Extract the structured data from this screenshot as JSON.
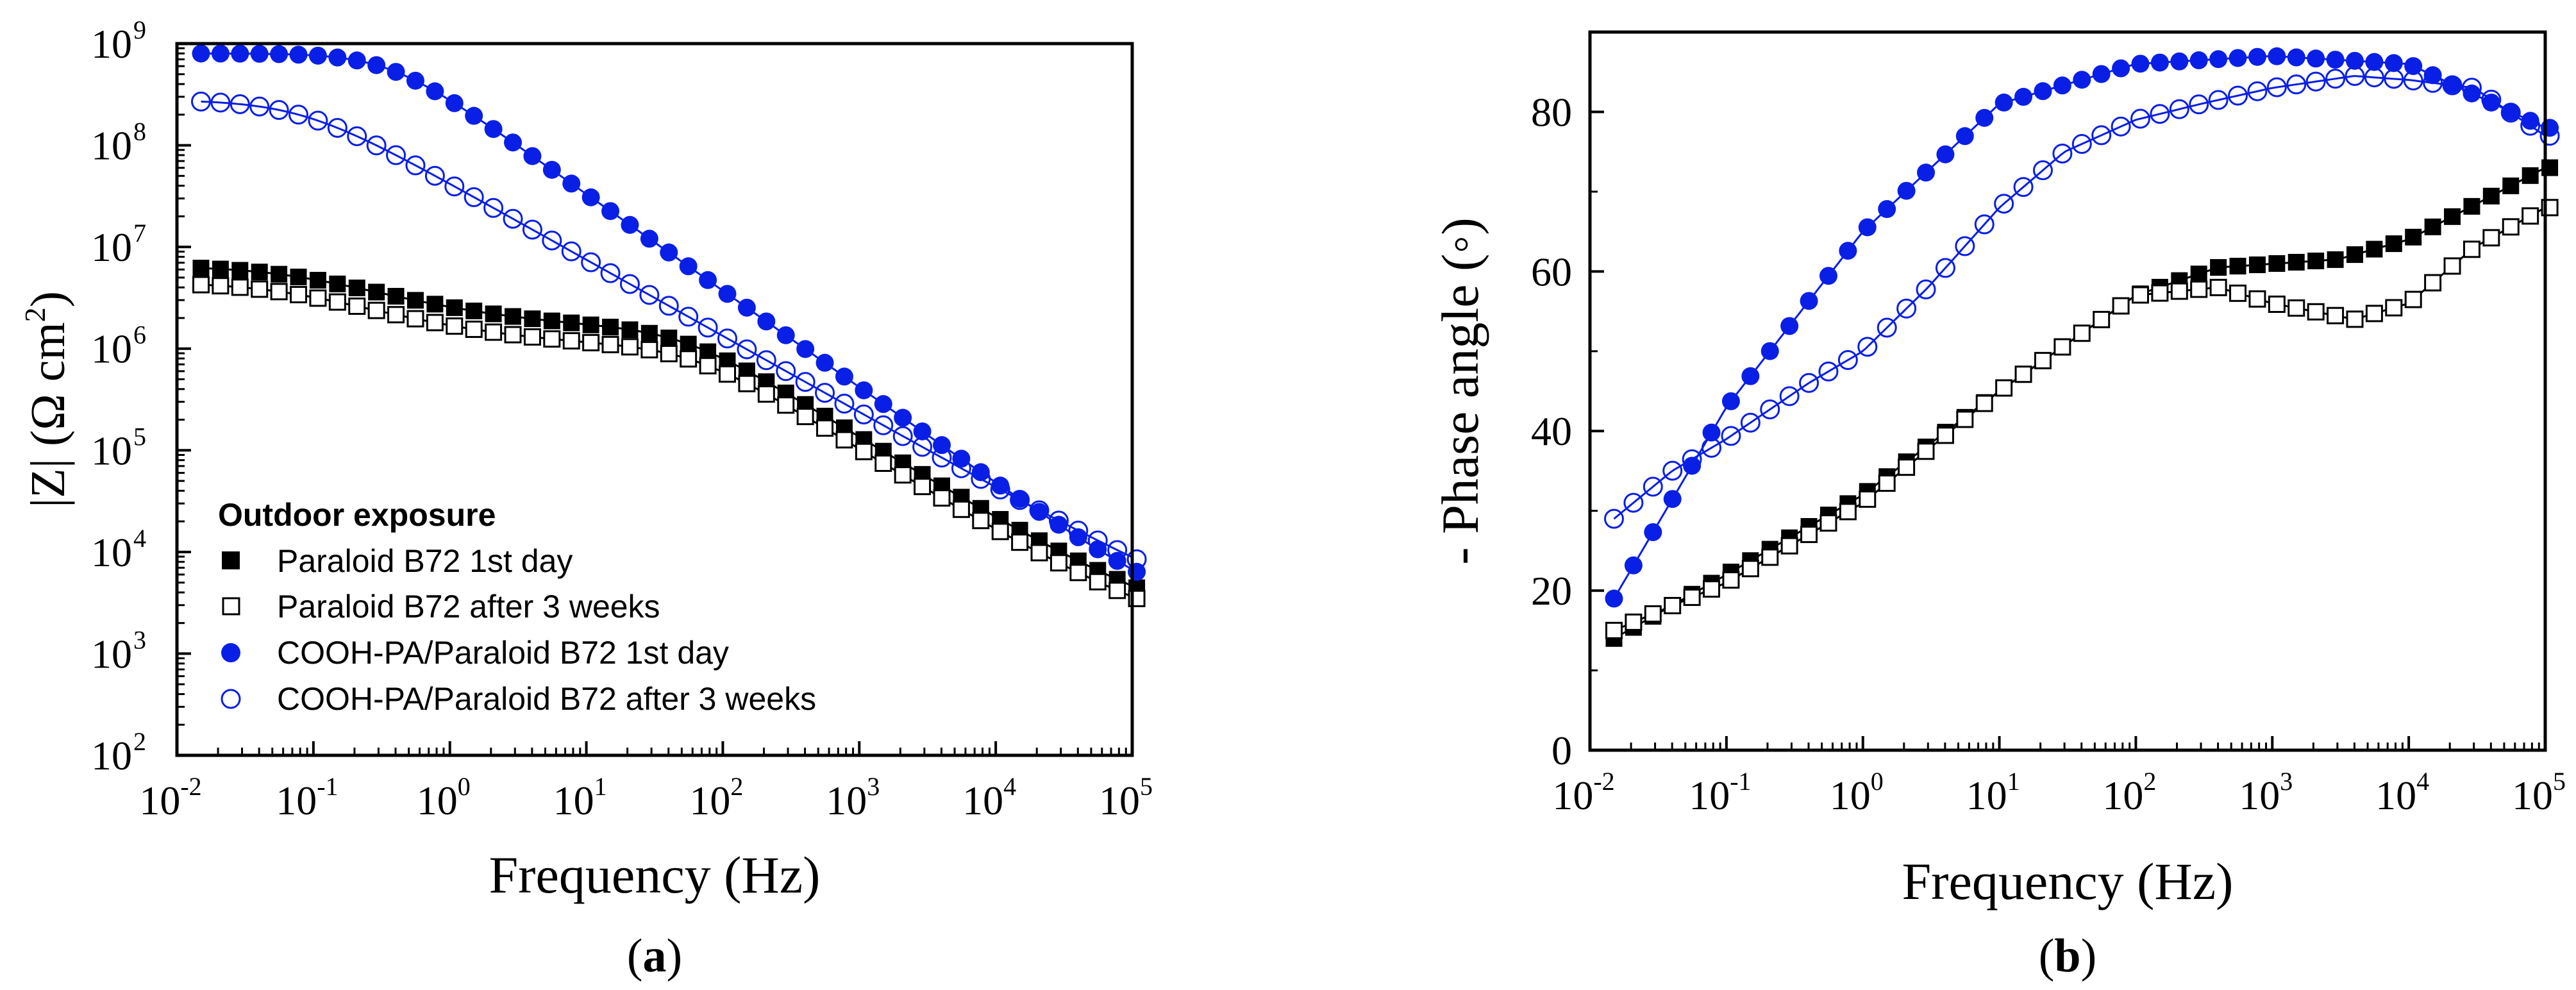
{
  "chart_data": [
    {
      "type": "scatter",
      "panel": "a",
      "panel_label": "a",
      "ylabel": "|Z| (Ω cm²)",
      "ylabel_main": "|Z| (Ω cm",
      "ylabel_sup": "2",
      "ylabel_close": ")",
      "xlabel": "Frequency (Hz)",
      "xscale": "log",
      "yscale": "log",
      "xlim": [
        0.01,
        100000
      ],
      "ylim": [
        100,
        1000000000
      ],
      "x_tick_labels": [
        {
          "base": "10",
          "exp": "-2"
        },
        {
          "base": "10",
          "exp": "-1"
        },
        {
          "base": "10",
          "exp": "0"
        },
        {
          "base": "10",
          "exp": "1"
        },
        {
          "base": "10",
          "exp": "2"
        },
        {
          "base": "10",
          "exp": "3"
        },
        {
          "base": "10",
          "exp": "4"
        },
        {
          "base": "10",
          "exp": "5"
        }
      ],
      "y_tick_labels": [
        {
          "base": "10",
          "exp": "2"
        },
        {
          "base": "10",
          "exp": "3"
        },
        {
          "base": "10",
          "exp": "4"
        },
        {
          "base": "10",
          "exp": "5"
        },
        {
          "base": "10",
          "exp": "6"
        },
        {
          "base": "10",
          "exp": "7"
        },
        {
          "base": "10",
          "exp": "8"
        },
        {
          "base": "10",
          "exp": "9"
        }
      ],
      "legend_title": "Outdoor exposure",
      "legend_position": "bottom-left",
      "series": [
        {
          "name": "Paraloid B72 1st day",
          "marker": "square-filled",
          "color": "#000000",
          "model": "z",
          "params": {
            "Rs": 1200,
            "R1": 5000000,
            "f1": 0.08,
            "n1": 0.6,
            "R2": 1500000,
            "f2": 50,
            "n2": 0.85
          }
        },
        {
          "name": "Paraloid B72 after 3 weeks",
          "marker": "square-open",
          "color": "#000000",
          "model": "z",
          "params": {
            "Rs": 1100,
            "R1": 3500000,
            "f1": 0.07,
            "n1": 0.6,
            "R2": 1000000,
            "f2": 60,
            "n2": 0.85
          }
        },
        {
          "name": "COOH-PA/Paraloid B72 1st day",
          "marker": "circle-filled",
          "color": "#0a1fe6",
          "model": "z",
          "params": {
            "Rs": 1500,
            "R1": 800000000,
            "f1": 0.35,
            "n1": 0.95
          }
        },
        {
          "name": "COOH-PA/Paraloid B72 after 3 weeks",
          "marker": "circle-open",
          "color": "#0a1fe6",
          "model": "z",
          "params": {
            "Rs": 1400,
            "R1": 280000000,
            "f1": 0.08,
            "n1": 0.75
          }
        }
      ]
    },
    {
      "type": "scatter",
      "panel": "b",
      "panel_label": "b",
      "ylabel": "- Phase angle (◦)",
      "xlabel": "Frequency (Hz)",
      "xscale": "log",
      "yscale": "linear",
      "xlim": [
        0.01,
        100000
      ],
      "ylim": [
        0,
        90
      ],
      "x_tick_labels": [
        {
          "base": "10",
          "exp": "-2"
        },
        {
          "base": "10",
          "exp": "-1"
        },
        {
          "base": "10",
          "exp": "0"
        },
        {
          "base": "10",
          "exp": "1"
        },
        {
          "base": "10",
          "exp": "2"
        },
        {
          "base": "10",
          "exp": "3"
        },
        {
          "base": "10",
          "exp": "4"
        },
        {
          "base": "10",
          "exp": "5"
        }
      ],
      "y_ticks": [
        0,
        20,
        40,
        60,
        80
      ],
      "y_tick_labels": [
        "0",
        "20",
        "40",
        "60",
        "80"
      ],
      "series": [
        {
          "name": "Paraloid B72 1st day",
          "marker": "square-filled",
          "color": "#000000",
          "model": "phase",
          "points": [
            [
              0.015,
              14
            ],
            [
              0.1,
              22
            ],
            [
              1,
              32
            ],
            [
              10,
              45
            ],
            [
              100,
              57
            ],
            [
              400,
              60.5
            ],
            [
              3000,
              61.5
            ],
            [
              10000,
              64
            ],
            [
              100000,
              73
            ]
          ]
        },
        {
          "name": "Paraloid B72 after 3 weeks",
          "marker": "square-open",
          "color": "#000000",
          "model": "phase",
          "points": [
            [
              0.015,
              15
            ],
            [
              0.1,
              21
            ],
            [
              1,
              31
            ],
            [
              10,
              45
            ],
            [
              100,
              57
            ],
            [
              400,
              58
            ],
            [
              1000,
              56
            ],
            [
              4000,
              54
            ],
            [
              10000,
              56
            ],
            [
              30000,
              63
            ],
            [
              100000,
              68
            ]
          ]
        },
        {
          "name": "COOH-PA/Paraloid B72 1st day",
          "marker": "circle-filled",
          "color": "#0a1fe6",
          "model": "phase",
          "points": [
            [
              0.015,
              19
            ],
            [
              0.1,
              43
            ],
            [
              1,
              65
            ],
            [
              10,
              81
            ],
            [
              100,
              86
            ],
            [
              1000,
              87
            ],
            [
              10000,
              86
            ],
            [
              100000,
              78
            ]
          ]
        },
        {
          "name": "COOH-PA/Paraloid B72 after 3 weeks",
          "marker": "circle-open",
          "color": "#0a1fe6",
          "model": "phase",
          "points": [
            [
              0.015,
              29
            ],
            [
              0.04,
              35
            ],
            [
              0.1,
              39
            ],
            [
              0.4,
              46
            ],
            [
              1,
              50
            ],
            [
              3,
              58
            ],
            [
              10,
              68
            ],
            [
              30,
              75
            ],
            [
              100,
              79
            ],
            [
              300,
              81
            ],
            [
              1000,
              83
            ],
            [
              4000,
              84.5
            ],
            [
              10000,
              84
            ],
            [
              30000,
              83
            ],
            [
              100000,
              77
            ]
          ]
        }
      ]
    }
  ]
}
